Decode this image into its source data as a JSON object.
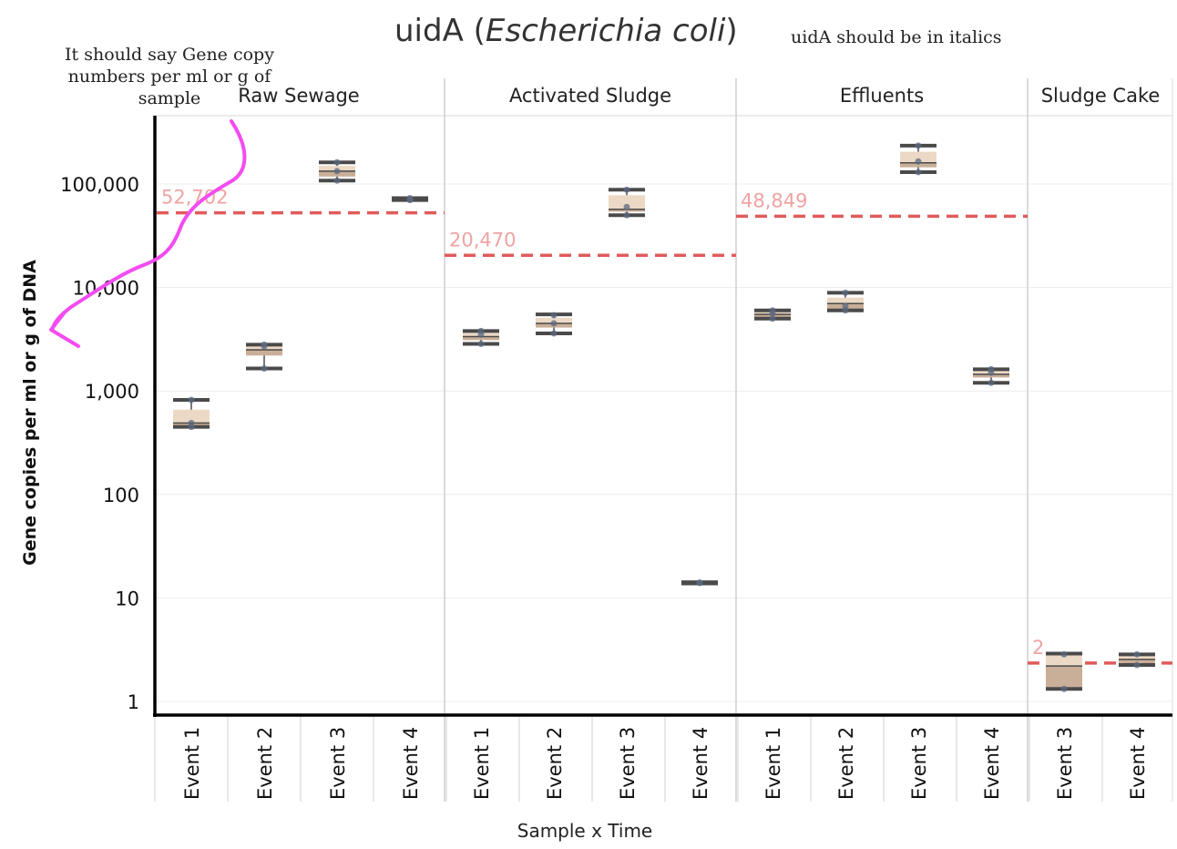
{
  "title": {
    "gene": "uidA",
    "open": "(",
    "organism": "Escherichia coli",
    "close": ")"
  },
  "annotations": {
    "italics_note": "uidA should be in italics",
    "ylabel_note": "It should say Gene copy numbers per ml or g of sample",
    "highlight_color": "#f24cf0"
  },
  "chart_data": {
    "type": "box",
    "title": "uidA (Escherichia coli)",
    "xlabel": "Sample x Time",
    "ylabel": "Gene copies per ml or g of DNA",
    "yscale": "log",
    "ylim": [
      0.7,
      400000
    ],
    "ytick_values": [
      1,
      10,
      100,
      1000,
      10000,
      100000
    ],
    "ytick_labels": [
      "1",
      "10",
      "100",
      "1,000",
      "10,000",
      "100,000"
    ],
    "grid": true,
    "colors": {
      "reference_line": "#e05b5b",
      "reference_label": "#f0a3a3",
      "box_upper": "#ecd9c5",
      "box_lower": "#c9ae98",
      "whisker": "#4a4a4a",
      "point": "#5b6880"
    },
    "panels": [
      {
        "name": "Raw Sewage",
        "reference_line": 52702,
        "reference_label": "52,702",
        "events": [
          {
            "label": "Event 1",
            "min": 450,
            "q1": 465,
            "median": 490,
            "q3": 660,
            "max": 820,
            "points": [
              450,
              490,
              820
            ]
          },
          {
            "label": "Event 2",
            "min": 1650,
            "q1": 2200,
            "median": 2500,
            "q3": 2750,
            "max": 2800,
            "points": [
              1650,
              2700,
              2800
            ]
          },
          {
            "label": "Event 3",
            "min": 108000,
            "q1": 118000,
            "median": 133000,
            "q3": 150000,
            "max": 162000,
            "points": [
              108000,
              133000,
              162000
            ]
          },
          {
            "label": "Event 4",
            "min": 70000,
            "q1": 70500,
            "median": 71000,
            "q3": 72000,
            "max": 73000,
            "points": [
              70000,
              71000,
              73000
            ]
          }
        ]
      },
      {
        "name": "Activated Sludge",
        "reference_line": 20470,
        "reference_label": "20,470",
        "events": [
          {
            "label": "Event 1",
            "min": 2850,
            "q1": 3100,
            "median": 3350,
            "q3": 3650,
            "max": 3800,
            "points": [
              2850,
              3500,
              3800
            ]
          },
          {
            "label": "Event 2",
            "min": 3600,
            "q1": 4100,
            "median": 4500,
            "q3": 5100,
            "max": 5500,
            "points": [
              3600,
              4500,
              5400
            ]
          },
          {
            "label": "Event 3",
            "min": 50000,
            "q1": 54000,
            "median": 57000,
            "q3": 78000,
            "max": 88000,
            "points": [
              50000,
              60000,
              88000
            ]
          },
          {
            "label": "Event 4",
            "min": 13.8,
            "q1": 13.9,
            "median": 14.0,
            "q3": 14.1,
            "max": 14.2,
            "points": [
              14,
              14,
              14
            ]
          }
        ]
      },
      {
        "name": "Effluents",
        "reference_line": 48849,
        "reference_label": "48,849",
        "events": [
          {
            "label": "Event 1",
            "min": 5000,
            "q1": 5150,
            "median": 5500,
            "q3": 5850,
            "max": 6000,
            "points": [
              5000,
              5600,
              6000
            ]
          },
          {
            "label": "Event 2",
            "min": 6000,
            "q1": 6200,
            "median": 7000,
            "q3": 8000,
            "max": 8900,
            "points": [
              6000,
              6600,
              8900
            ]
          },
          {
            "label": "Event 3",
            "min": 130000,
            "q1": 145000,
            "median": 160000,
            "q3": 205000,
            "max": 235000,
            "points": [
              130000,
              165000,
              235000
            ]
          },
          {
            "label": "Event 4",
            "min": 1200,
            "q1": 1350,
            "median": 1450,
            "q3": 1570,
            "max": 1620,
            "points": [
              1200,
              1500,
              1620
            ]
          }
        ]
      },
      {
        "name": "Sludge Cake",
        "reference_line": 2.35,
        "reference_label": "2",
        "events": [
          {
            "label": "Event 3",
            "min": 1.32,
            "q1": 1.34,
            "median": 2.2,
            "q3": 2.85,
            "max": 2.9,
            "points": [
              1.32,
              2.85
            ]
          },
          {
            "label": "Event 4",
            "min": 2.25,
            "q1": 2.35,
            "median": 2.55,
            "q3": 2.75,
            "max": 2.85,
            "points": [
              2.25,
              2.85
            ]
          }
        ]
      }
    ]
  }
}
